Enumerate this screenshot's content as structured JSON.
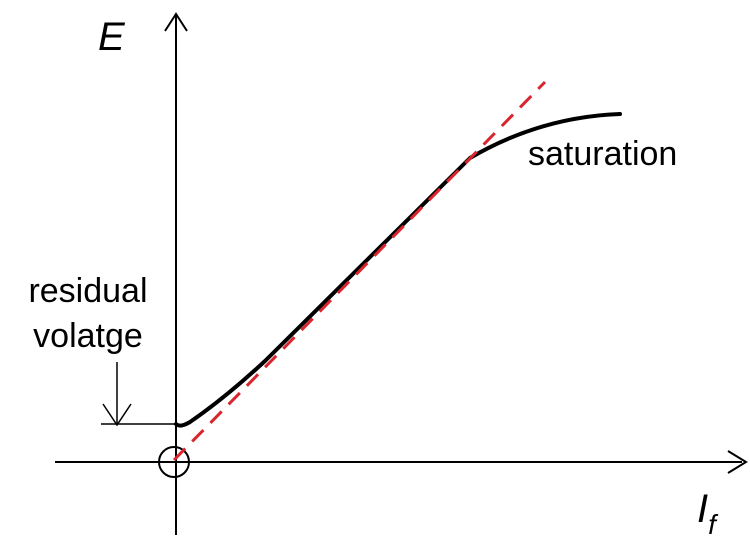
{
  "axes": {
    "y_label": "E",
    "x_label_main": "I",
    "x_label_sub": "f"
  },
  "annotations": {
    "saturation": "saturation",
    "residual_line1": "residual",
    "residual_line2": "volatge"
  },
  "colors": {
    "curve": "#000000",
    "tangent": "#d9262e",
    "axes": "#000000"
  }
}
